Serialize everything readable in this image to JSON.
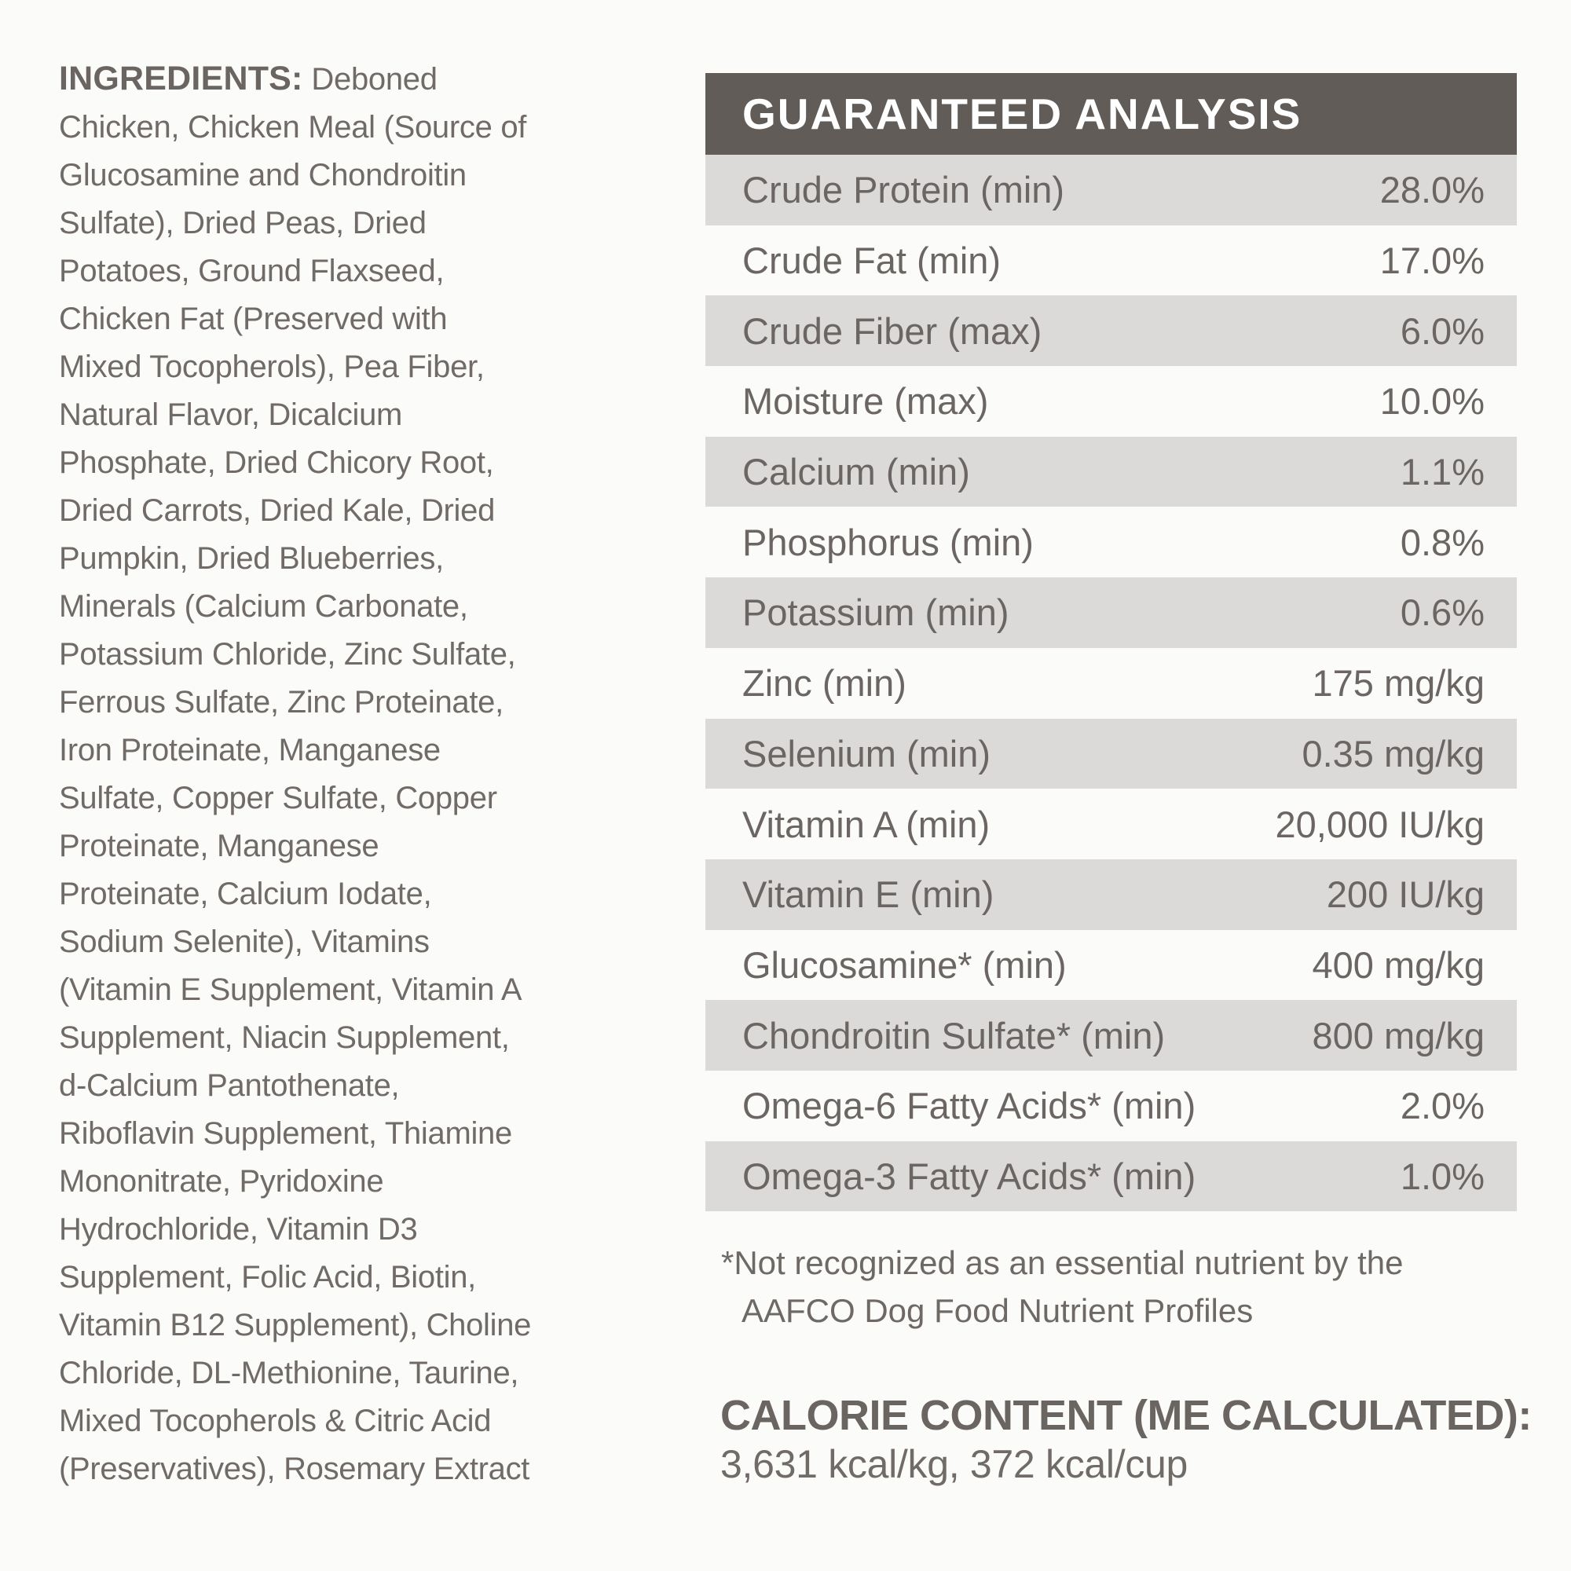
{
  "ingredients": {
    "label": "INGREDIENTS:",
    "text": "Deboned Chicken, Chicken Meal (Source of Glucosamine and Chondroitin Sulfate), Dried Peas, Dried Potatoes, Ground Flaxseed, Chicken Fat (Preserved with Mixed Tocopherols), Pea Fiber, Natural Flavor, Dicalcium Phosphate, Dried Chicory Root, Dried Carrots, Dried Kale, Dried Pumpkin, Dried Blueberries, Minerals (Calcium Carbonate, Potassium Chloride, Zinc Sulfate, Ferrous Sulfate, Zinc Proteinate, Iron Proteinate, Manganese Sulfate, Copper Sulfate, Copper Proteinate, Manganese Proteinate, Calcium Iodate, Sodium Selenite), Vitamins (Vitamin E Supplement, Vitamin A Supplement, Niacin Supplement, d-Calcium Pantothenate, Riboflavin Supplement, Thiamine Mononitrate, Pyridoxine Hydrochloride, Vitamin D3 Supplement, Folic Acid, Biotin, Vitamin B12 Supplement), Choline Chloride, DL-Methionine, Taurine, Mixed Tocopherols & Citric Acid (Preservatives), Rosemary Extract"
  },
  "analysis": {
    "title": "GUARANTEED ANALYSIS",
    "rows": [
      {
        "label": "Crude Protein (min)",
        "value": "28.0%"
      },
      {
        "label": "Crude Fat (min)",
        "value": "17.0%"
      },
      {
        "label": "Crude Fiber (max)",
        "value": "6.0%"
      },
      {
        "label": "Moisture (max)",
        "value": "10.0%"
      },
      {
        "label": "Calcium (min)",
        "value": "1.1%"
      },
      {
        "label": "Phosphorus (min)",
        "value": "0.8%"
      },
      {
        "label": "Potassium (min)",
        "value": "0.6%"
      },
      {
        "label": "Zinc (min)",
        "value": "175 mg/kg"
      },
      {
        "label": "Selenium (min)",
        "value": "0.35 mg/kg"
      },
      {
        "label": "Vitamin A (min)",
        "value": "20,000 IU/kg"
      },
      {
        "label": "Vitamin E (min)",
        "value": "200 IU/kg"
      },
      {
        "label": "Glucosamine* (min)",
        "value": "400 mg/kg"
      },
      {
        "label": "Chondroitin Sulfate* (min)",
        "value": "800 mg/kg"
      },
      {
        "label": "Omega-6 Fatty Acids* (min)",
        "value": "2.0%"
      },
      {
        "label": "Omega-3 Fatty Acids* (min)",
        "value": "1.0%"
      }
    ],
    "footnote_line1": "*Not recognized as an essential nutrient by the",
    "footnote_line2": "AAFCO Dog Food Nutrient Profiles"
  },
  "calories": {
    "title": "CALORIE CONTENT (ME CALCULATED):",
    "value": "3,631 kcal/kg, 372 kcal/cup"
  },
  "colors": {
    "header_bg": "#625c58",
    "header_text": "#ffffff",
    "row_alt_bg": "#dcdad8",
    "body_text": "#716b68",
    "page_bg": "#fbfbfa"
  }
}
